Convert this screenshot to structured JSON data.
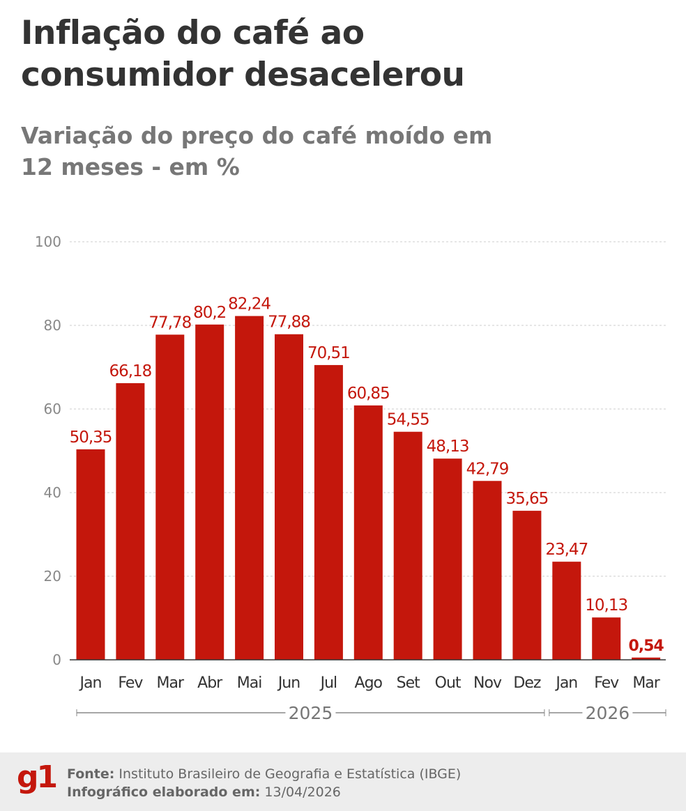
{
  "title": "Inflação do café ao consumidor desacelerou",
  "subtitle": "Variação do preço do café moído em 12 meses - em %",
  "chart_data": {
    "type": "bar",
    "categories": [
      "Jan",
      "Fev",
      "Mar",
      "Abr",
      "Mai",
      "Jun",
      "Jul",
      "Ago",
      "Set",
      "Out",
      "Nov",
      "Dez",
      "Jan",
      "Fev",
      "Mar"
    ],
    "values": [
      50.35,
      66.18,
      77.78,
      80.2,
      82.24,
      77.88,
      70.51,
      60.85,
      54.55,
      48.13,
      42.79,
      35.65,
      23.47,
      10.13,
      0.54
    ],
    "data_labels": [
      "50,35",
      "66,18",
      "77,78",
      "80,2",
      "82,24",
      "77,88",
      "70,51",
      "60,85",
      "54,55",
      "48,13",
      "42,79",
      "35,65",
      "23,47",
      "10,13",
      "0,54"
    ],
    "year_groups": [
      {
        "label": "2025",
        "count": 12
      },
      {
        "label": "2026",
        "count": 3
      }
    ],
    "yticks": [
      0,
      20,
      40,
      60,
      80,
      100
    ],
    "ylim": [
      0,
      100
    ],
    "grid": true,
    "bar_color": "#c4170c",
    "highlight_last": true
  },
  "footer": {
    "logo": "g1",
    "source_label": "Fonte:",
    "source": "Instituto Brasileiro de Geografia e Estatística (IBGE)",
    "date_label": "Infográfico elaborado em:",
    "date": "13/04/2026"
  }
}
